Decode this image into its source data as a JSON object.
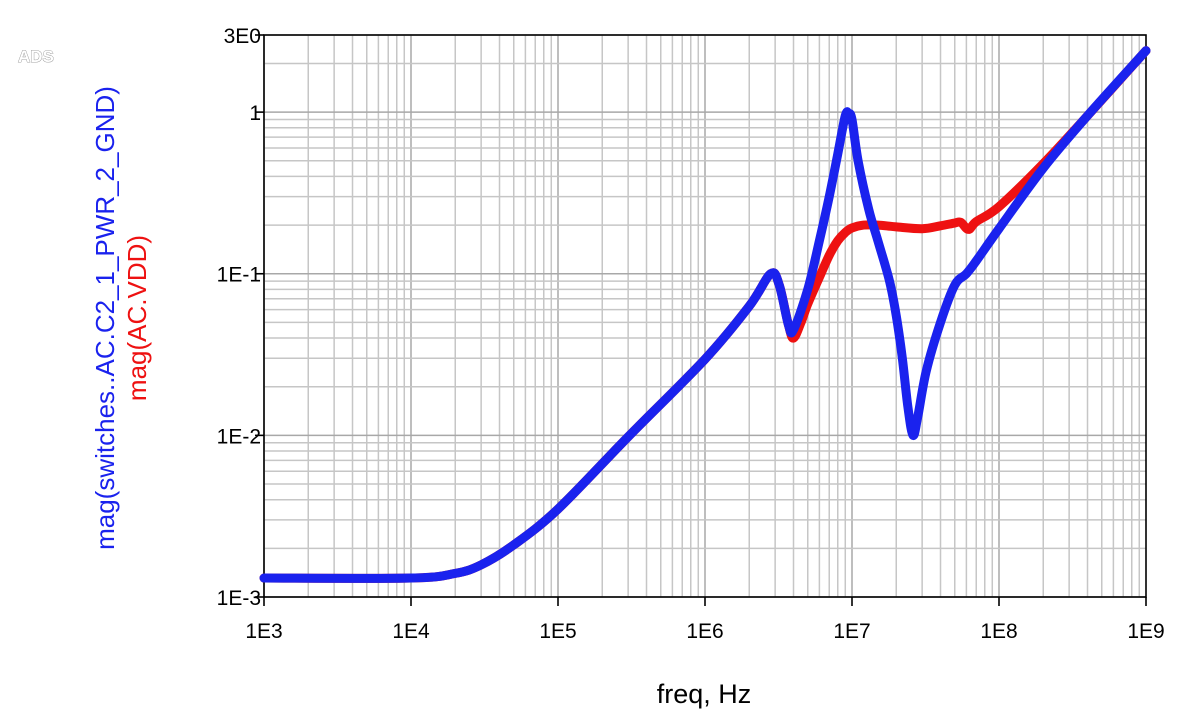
{
  "logo": "ADS",
  "chart_data": {
    "type": "line",
    "xlabel": "freq, Hz",
    "ylabels": [
      "mag(switches..AC.C2_1_PWR_2_GND)",
      "mag(AC.VDD)"
    ],
    "x_scale": "log",
    "y_scale": "log",
    "xlim": [
      1000,
      1000000000
    ],
    "ylim": [
      0.001,
      3
    ],
    "grid": true,
    "x_ticks": [
      {
        "value": 1000,
        "label": "1E3"
      },
      {
        "value": 10000,
        "label": "1E4"
      },
      {
        "value": 100000,
        "label": "1E5"
      },
      {
        "value": 1000000,
        "label": "1E6"
      },
      {
        "value": 10000000,
        "label": "1E7"
      },
      {
        "value": 100000000,
        "label": "1E8"
      },
      {
        "value": 1000000000,
        "label": "1E9"
      }
    ],
    "y_ticks": [
      {
        "value": 0.001,
        "label": "1E-3"
      },
      {
        "value": 0.01,
        "label": "1E-2"
      },
      {
        "value": 0.1,
        "label": "1E-1"
      },
      {
        "value": 1,
        "label": "1"
      },
      {
        "value": 3,
        "label": "3E0"
      }
    ],
    "series": [
      {
        "color": "#ee1111",
        "points": [
          [
            1000,
            0.00131
          ],
          [
            10000,
            0.00131
          ],
          [
            20000,
            0.0014
          ],
          [
            30000,
            0.00158
          ],
          [
            50000,
            0.0021
          ],
          [
            100000,
            0.0035
          ],
          [
            300000,
            0.0098
          ],
          [
            1000000,
            0.0296
          ],
          [
            2000000,
            0.063
          ],
          [
            2800000,
            0.1
          ],
          [
            3200000,
            0.085
          ],
          [
            3700000,
            0.048
          ],
          [
            4000000,
            0.04
          ],
          [
            4500000,
            0.05
          ],
          [
            5000000,
            0.065
          ],
          [
            6000000,
            0.095
          ],
          [
            7000000,
            0.13
          ],
          [
            8000000,
            0.16
          ],
          [
            9000000,
            0.18
          ],
          [
            10000000,
            0.192
          ],
          [
            12000000,
            0.2
          ],
          [
            15000000,
            0.2
          ],
          [
            20000000,
            0.195
          ],
          [
            30000000,
            0.19
          ],
          [
            40000000,
            0.198
          ],
          [
            50000000,
            0.206
          ],
          [
            55000000,
            0.208
          ],
          [
            62000000,
            0.188
          ],
          [
            70000000,
            0.21
          ],
          [
            100000000,
            0.26
          ],
          [
            200000000,
            0.48
          ],
          [
            400000000,
            0.95
          ],
          [
            1000000000,
            2.4
          ]
        ]
      },
      {
        "color": "#1a22ee",
        "points": [
          [
            1000,
            0.00131
          ],
          [
            10000,
            0.00131
          ],
          [
            20000,
            0.0014
          ],
          [
            30000,
            0.00158
          ],
          [
            50000,
            0.0021
          ],
          [
            100000,
            0.0035
          ],
          [
            300000,
            0.0098
          ],
          [
            1000000,
            0.0296
          ],
          [
            2000000,
            0.063
          ],
          [
            2800000,
            0.1
          ],
          [
            3200000,
            0.085
          ],
          [
            3700000,
            0.048
          ],
          [
            4000000,
            0.045
          ],
          [
            5000000,
            0.08
          ],
          [
            6000000,
            0.16
          ],
          [
            7000000,
            0.3
          ],
          [
            8000000,
            0.55
          ],
          [
            9000000,
            0.95
          ],
          [
            9500000,
            0.98
          ],
          [
            10000000,
            0.9
          ],
          [
            11000000,
            0.5
          ],
          [
            13000000,
            0.25
          ],
          [
            15000000,
            0.16
          ],
          [
            18000000,
            0.09
          ],
          [
            20000000,
            0.055
          ],
          [
            22000000,
            0.03
          ],
          [
            24000000,
            0.015
          ],
          [
            26000000,
            0.01
          ],
          [
            28000000,
            0.013
          ],
          [
            32000000,
            0.025
          ],
          [
            40000000,
            0.05
          ],
          [
            50000000,
            0.085
          ],
          [
            60000000,
            0.1
          ],
          [
            70000000,
            0.12
          ],
          [
            100000000,
            0.19
          ],
          [
            200000000,
            0.45
          ],
          [
            400000000,
            0.95
          ],
          [
            1000000000,
            2.4
          ]
        ]
      }
    ]
  }
}
